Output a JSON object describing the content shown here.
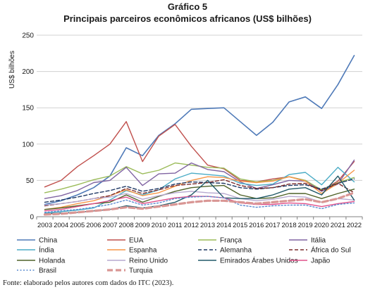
{
  "title": "Gráfico 5",
  "subtitle": "Principais parceiros econômicos africanos (US$ bilhões)",
  "source": "Fonte: elaborado pelos autores com dados do ITC (2023).",
  "chart_data": {
    "type": "line",
    "ylabel": "US$ bilhões",
    "ylim": [
      0,
      250
    ],
    "yticks": [
      0,
      50,
      100,
      150,
      200,
      250
    ],
    "grid": true,
    "legend_position": "bottom",
    "x": [
      "2003",
      "2004",
      "2005",
      "2006",
      "2007",
      "2008",
      "2009",
      "2010",
      "2011",
      "2012",
      "2013",
      "2014",
      "2015",
      "2016",
      "2017",
      "2018",
      "2019",
      "2020",
      "2021",
      "2022"
    ],
    "series": [
      {
        "name": "China",
        "color": "#4f7ab8",
        "dash": "solid",
        "width": 1.6,
        "values": [
          17,
          22,
          30,
          40,
          56,
          95,
          84,
          112,
          128,
          148,
          149,
          150,
          131,
          112,
          130,
          158,
          165,
          149,
          182,
          222
        ]
      },
      {
        "name": "EUA",
        "color": "#c0504d",
        "dash": "solid",
        "width": 1.4,
        "values": [
          41,
          50,
          69,
          84,
          100,
          131,
          76,
          111,
          127,
          97,
          71,
          66,
          50,
          48,
          52,
          55,
          50,
          36,
          49,
          76
        ]
      },
      {
        "name": "França",
        "color": "#9bbb59",
        "dash": "solid",
        "width": 1.4,
        "values": [
          33,
          38,
          44,
          51,
          56,
          69,
          59,
          64,
          74,
          71,
          68,
          67,
          52,
          48,
          50,
          55,
          50,
          37,
          47,
          54
        ]
      },
      {
        "name": "Itália",
        "color": "#8064a2",
        "dash": "solid",
        "width": 1.4,
        "values": [
          25,
          29,
          36,
          47,
          50,
          68,
          43,
          59,
          60,
          74,
          65,
          62,
          48,
          39,
          44,
          50,
          49,
          35,
          45,
          78
        ]
      },
      {
        "name": "Índia",
        "color": "#4bacc6",
        "dash": "solid",
        "width": 1.4,
        "values": [
          5,
          7,
          9,
          12,
          23,
          36,
          30,
          37,
          52,
          60,
          58,
          56,
          46,
          43,
          45,
          58,
          61,
          44,
          68,
          48
        ]
      },
      {
        "name": "Espanha",
        "color": "#f79646",
        "dash": "solid",
        "width": 1.4,
        "values": [
          10,
          13,
          18,
          22,
          29,
          37,
          29,
          33,
          42,
          50,
          55,
          54,
          49,
          47,
          49,
          55,
          49,
          32,
          46,
          64
        ]
      },
      {
        "name": "Alemanha",
        "color": "#1f3864",
        "dash": "dash",
        "width": 1.4,
        "values": [
          20,
          23,
          27,
          32,
          36,
          42,
          35,
          39,
          45,
          48,
          47,
          46,
          40,
          38,
          40,
          43,
          44,
          38,
          46,
          52
        ]
      },
      {
        "name": "África do Sul",
        "color": "#7b2c2c",
        "dash": "dash",
        "width": 1.4,
        "values": [
          15,
          18,
          21,
          25,
          29,
          39,
          32,
          37,
          43,
          45,
          47,
          51,
          43,
          39,
          40,
          45,
          46,
          36,
          46,
          33
        ]
      },
      {
        "name": "Holanda",
        "color": "#4f6228",
        "dash": "solid",
        "width": 1.4,
        "values": [
          10,
          12,
          15,
          18,
          20,
          30,
          20,
          28,
          35,
          40,
          42,
          43,
          30,
          25,
          26,
          32,
          32,
          25,
          32,
          38
        ]
      },
      {
        "name": "Reino Unido",
        "color": "#b7a9cf",
        "dash": "solid",
        "width": 1.4,
        "values": [
          16,
          18,
          21,
          25,
          27,
          32,
          24,
          29,
          33,
          35,
          33,
          32,
          25,
          22,
          24,
          28,
          27,
          20,
          25,
          23
        ]
      },
      {
        "name": "Emirados Árabes Unidos",
        "color": "#215968",
        "dash": "solid",
        "width": 1.4,
        "values": [
          4,
          5,
          6,
          8,
          10,
          15,
          12,
          15,
          20,
          30,
          50,
          26,
          25,
          25,
          30,
          38,
          40,
          30,
          56,
          23
        ]
      },
      {
        "name": "Japão",
        "color": "#e0508a",
        "dash": "solid",
        "width": 1.4,
        "values": [
          8,
          10,
          14,
          18,
          22,
          27,
          18,
          22,
          26,
          28,
          28,
          26,
          19,
          17,
          17,
          19,
          18,
          14,
          18,
          21
        ]
      },
      {
        "name": "Brasil",
        "color": "#5b8bd0",
        "dash": "dot",
        "width": 1.4,
        "values": [
          6,
          8,
          10,
          13,
          17,
          23,
          16,
          19,
          25,
          27,
          28,
          26,
          16,
          13,
          15,
          16,
          16,
          11,
          17,
          19
        ]
      },
      {
        "name": "Turquia",
        "color": "#d99694",
        "dash": "bigdash",
        "width": 3.2,
        "values": [
          3,
          4,
          6,
          8,
          10,
          13,
          11,
          14,
          17,
          20,
          22,
          22,
          20,
          18,
          20,
          22,
          24,
          20,
          25,
          33
        ]
      }
    ]
  }
}
